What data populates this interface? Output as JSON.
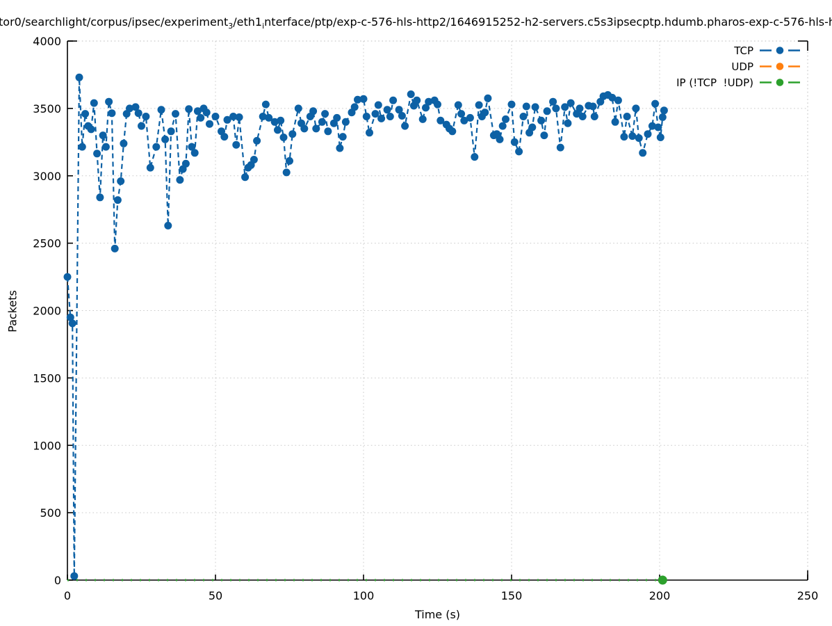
{
  "title": {
    "pre": "tor0/searchlight/corpus/ipsec/experiment",
    "sub1": "3",
    "mid": "/eth1",
    "sub2": "i",
    "rest": "nterface/ptp/exp-c-576-hls-http2/1646915252-h2-servers.c5s3ipsecptp.hdumb.pharos-exp-c-576-hls-h"
  },
  "chart_data": {
    "type": "line",
    "title": "tor0/searchlight/corpus/ipsec/experiment₃/eth1ᵢnterface/ptp/exp-c-576-hls-http2/1646915252-h2-servers.c5s3ipsecptp.hdumb.pharos-exp-c-576-hls-h",
    "xlabel": "Time (s)",
    "ylabel": "Packets",
    "xlim": [
      0,
      250
    ],
    "ylim": [
      0,
      4000
    ],
    "x_ticks": [
      0,
      50,
      100,
      150,
      200,
      250
    ],
    "y_ticks": [
      0,
      500,
      1000,
      1500,
      2000,
      2500,
      3000,
      3500,
      4000
    ],
    "grid": "dotted",
    "legend_position": "top-right",
    "series": [
      {
        "name": "TCP",
        "color": "#0d61a5",
        "linestyle": "dashed",
        "marker": "circle",
        "marker_at": "all",
        "points": [
          [
            0,
            2250
          ],
          [
            1,
            1950
          ],
          [
            1.7,
            1905
          ],
          [
            2.3,
            30
          ],
          [
            4,
            3730
          ],
          [
            5,
            3215
          ],
          [
            6,
            3460
          ],
          [
            7,
            3370
          ],
          [
            8,
            3345
          ],
          [
            9,
            3540
          ],
          [
            10,
            3165
          ],
          [
            11,
            2840
          ],
          [
            12,
            3300
          ],
          [
            13,
            3215
          ],
          [
            14,
            3550
          ],
          [
            15,
            3465
          ],
          [
            16,
            2460
          ],
          [
            17,
            2820
          ],
          [
            18,
            2960
          ],
          [
            19,
            3240
          ],
          [
            20,
            3460
          ],
          [
            21,
            3500
          ],
          [
            23,
            3510
          ],
          [
            24,
            3465
          ],
          [
            25,
            3370
          ],
          [
            26.5,
            3440
          ],
          [
            28,
            3060
          ],
          [
            30,
            3215
          ],
          [
            31.7,
            3490
          ],
          [
            33,
            3270
          ],
          [
            34,
            2630
          ],
          [
            35,
            3330
          ],
          [
            36.5,
            3460
          ],
          [
            38,
            2970
          ],
          [
            39,
            3050
          ],
          [
            40,
            3090
          ],
          [
            41,
            3495
          ],
          [
            42,
            3215
          ],
          [
            43,
            3170
          ],
          [
            44,
            3480
          ],
          [
            45,
            3430
          ],
          [
            46,
            3500
          ],
          [
            47,
            3470
          ],
          [
            48,
            3385
          ],
          [
            50,
            3440
          ],
          [
            52,
            3330
          ],
          [
            53,
            3290
          ],
          [
            54,
            3415
          ],
          [
            56,
            3440
          ],
          [
            57,
            3230
          ],
          [
            58,
            3435
          ],
          [
            60,
            2990
          ],
          [
            61,
            3060
          ],
          [
            62,
            3080
          ],
          [
            63,
            3120
          ],
          [
            64,
            3260
          ],
          [
            66,
            3440
          ],
          [
            67,
            3530
          ],
          [
            68,
            3430
          ],
          [
            70,
            3400
          ],
          [
            71,
            3340
          ],
          [
            72,
            3410
          ],
          [
            73,
            3285
          ],
          [
            74,
            3025
          ],
          [
            75,
            3110
          ],
          [
            76,
            3310
          ],
          [
            78,
            3500
          ],
          [
            79,
            3390
          ],
          [
            80,
            3350
          ],
          [
            82,
            3440
          ],
          [
            83,
            3480
          ],
          [
            84,
            3350
          ],
          [
            86,
            3400
          ],
          [
            87,
            3460
          ],
          [
            88,
            3330
          ],
          [
            90,
            3390
          ],
          [
            91,
            3430
          ],
          [
            92,
            3205
          ],
          [
            93,
            3290
          ],
          [
            94,
            3400
          ],
          [
            96,
            3470
          ],
          [
            97,
            3510
          ],
          [
            98,
            3565
          ],
          [
            100,
            3570
          ],
          [
            101,
            3440
          ],
          [
            102,
            3320
          ],
          [
            104,
            3460
          ],
          [
            105,
            3525
          ],
          [
            106,
            3425
          ],
          [
            108,
            3490
          ],
          [
            109,
            3440
          ],
          [
            110,
            3560
          ],
          [
            112,
            3490
          ],
          [
            113,
            3445
          ],
          [
            114,
            3370
          ],
          [
            116,
            3605
          ],
          [
            117,
            3520
          ],
          [
            118,
            3560
          ],
          [
            120,
            3420
          ],
          [
            121,
            3505
          ],
          [
            122,
            3550
          ],
          [
            124,
            3560
          ],
          [
            125,
            3530
          ],
          [
            126,
            3410
          ],
          [
            128,
            3380
          ],
          [
            129,
            3350
          ],
          [
            130,
            3330
          ],
          [
            132,
            3525
          ],
          [
            133,
            3460
          ],
          [
            134,
            3410
          ],
          [
            136,
            3430
          ],
          [
            137.5,
            3140
          ],
          [
            139,
            3525
          ],
          [
            140,
            3440
          ],
          [
            141,
            3470
          ],
          [
            142,
            3575
          ],
          [
            144,
            3300
          ],
          [
            145,
            3310
          ],
          [
            146,
            3270
          ],
          [
            147,
            3370
          ],
          [
            148,
            3420
          ],
          [
            150,
            3530
          ],
          [
            151,
            3250
          ],
          [
            152.5,
            3180
          ],
          [
            154,
            3440
          ],
          [
            155,
            3515
          ],
          [
            156,
            3320
          ],
          [
            157,
            3360
          ],
          [
            158,
            3510
          ],
          [
            160,
            3410
          ],
          [
            161,
            3300
          ],
          [
            162,
            3480
          ],
          [
            164,
            3550
          ],
          [
            165,
            3500
          ],
          [
            166.5,
            3210
          ],
          [
            168,
            3510
          ],
          [
            169,
            3390
          ],
          [
            170,
            3540
          ],
          [
            172,
            3460
          ],
          [
            173,
            3500
          ],
          [
            174,
            3440
          ],
          [
            176,
            3520
          ],
          [
            177.5,
            3515
          ],
          [
            178,
            3440
          ],
          [
            180,
            3550
          ],
          [
            181,
            3590
          ],
          [
            182.5,
            3600
          ],
          [
            184,
            3580
          ],
          [
            185,
            3400
          ],
          [
            186,
            3560
          ],
          [
            188,
            3290
          ],
          [
            189,
            3440
          ],
          [
            190.8,
            3295
          ],
          [
            192,
            3500
          ],
          [
            193,
            3280
          ],
          [
            194.3,
            3170
          ],
          [
            196,
            3310
          ],
          [
            197.5,
            3370
          ],
          [
            198.5,
            3535
          ],
          [
            199.5,
            3360
          ],
          [
            200.3,
            3285
          ],
          [
            201,
            3435
          ],
          [
            201.5,
            3485
          ]
        ]
      },
      {
        "name": "UDP",
        "color": "#ff7f0e",
        "linestyle": "dashed",
        "marker": "circle",
        "marker_at": "none",
        "points": [
          [
            0,
            0
          ],
          [
            201,
            0
          ]
        ]
      },
      {
        "name": "IP (!TCP  !UDP)",
        "color": "#2ca02c",
        "linestyle": "dashed",
        "marker": "circle",
        "marker_at": "end",
        "points": [
          [
            0,
            0
          ],
          [
            201,
            0
          ]
        ]
      }
    ]
  }
}
